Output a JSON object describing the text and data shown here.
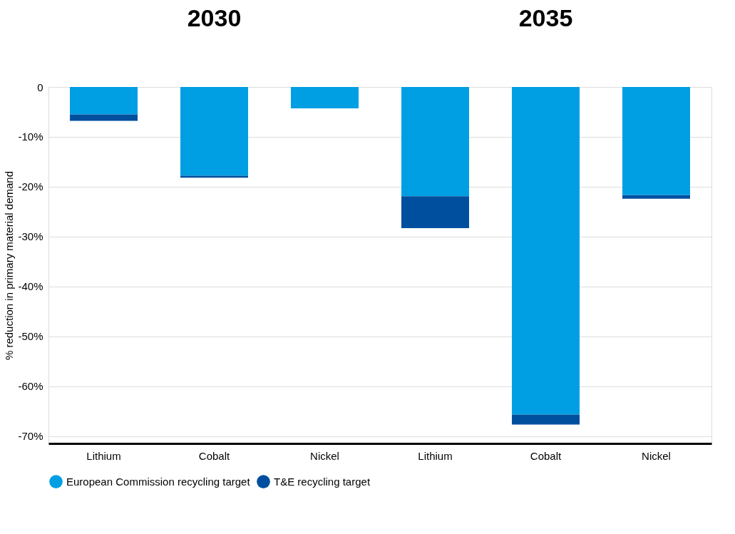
{
  "chart_data": {
    "type": "bar",
    "stacked": true,
    "categories": [
      "Lithium",
      "Cobalt",
      "Nickel",
      "Lithium",
      "Cobalt",
      "Nickel"
    ],
    "annotations": [
      "2030",
      "2035"
    ],
    "ylabel": "% reduction in primary material demand",
    "series": [
      {
        "name": "European Commission recycling target",
        "color": "#009fe3",
        "values": [
          -5.5,
          -17.8,
          -4.3,
          -21.9,
          -65.7,
          -21.7
        ]
      },
      {
        "name": "T&E recycling target",
        "color": "#004f9f",
        "values": [
          -1.3,
          -0.4,
          0,
          -6.4,
          -2.0,
          -0.7
        ]
      }
    ],
    "ylim": [
      -71.5,
      0
    ],
    "yticks": [
      0,
      {
        "value": -10,
        "label": "-10%"
      },
      {
        "value": -20,
        "label": "-20%"
      },
      {
        "value": -30,
        "label": "-30%"
      },
      {
        "value": -40,
        "label": "-40%"
      },
      {
        "value": -50,
        "label": "-50%"
      },
      {
        "value": -60,
        "label": "-60%"
      },
      {
        "value": -70,
        "label": "-70%"
      }
    ],
    "grid": "y",
    "legend": "bottom"
  }
}
